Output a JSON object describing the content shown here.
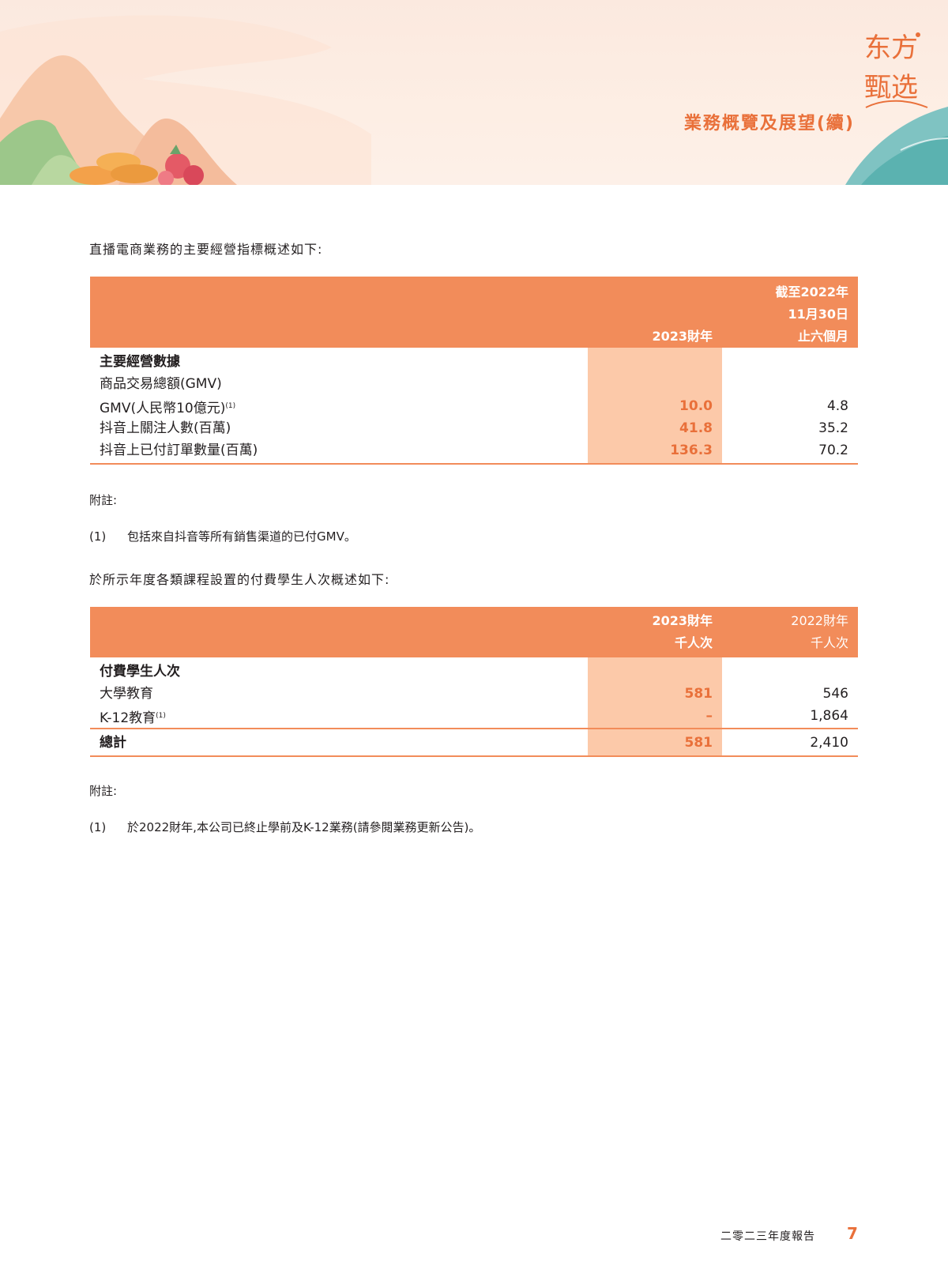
{
  "header": {
    "section_title": "業務概覽及展望(續)",
    "logo_text_1": "东方",
    "logo_text_2": "甄选"
  },
  "table1": {
    "intro": "直播電商業務的主要經營指標概述如下:",
    "col1_header": "2023財年",
    "col2_header_line1": "截至2022年",
    "col2_header_line2": "11月30日",
    "col2_header_line3": "止六個月",
    "section_label": "主要經營數據",
    "rows": [
      {
        "label": "商品交易總額(GMV)",
        "v1": "",
        "v2": ""
      },
      {
        "label": "GMV(人民幣10億元)",
        "sup": "(1)",
        "v1": "10.0",
        "v2": "4.8"
      },
      {
        "label": "抖音上關注人數(百萬)",
        "v1": "41.8",
        "v2": "35.2"
      },
      {
        "label": "抖音上已付訂單數量(百萬)",
        "v1": "136.3",
        "v2": "70.2"
      }
    ],
    "note_title": "附註:",
    "note_num": "(1)",
    "note_text": "包括來自抖音等所有銷售渠道的已付GMV。"
  },
  "table2": {
    "intro": "於所示年度各類課程設置的付費學生人次概述如下:",
    "col1_header_line1": "2023財年",
    "col1_header_line2": "千人次",
    "col2_header_line1": "2022財年",
    "col2_header_line2": "千人次",
    "section_label": "付費學生人次",
    "rows": [
      {
        "label": "大學教育",
        "v1": "581",
        "v2": "546"
      },
      {
        "label": "K-12教育",
        "sup": "(1)",
        "v1": "–",
        "v2": "1,864"
      }
    ],
    "total_label": "總計",
    "total_v1": "581",
    "total_v2": "2,410",
    "note_title": "附註:",
    "note_num": "(1)",
    "note_text": "於2022財年,本公司已終止學前及K-12業務(請參閱業務更新公告)。"
  },
  "footer": {
    "report_title": "二零二三年度報告",
    "page_number": "7"
  }
}
